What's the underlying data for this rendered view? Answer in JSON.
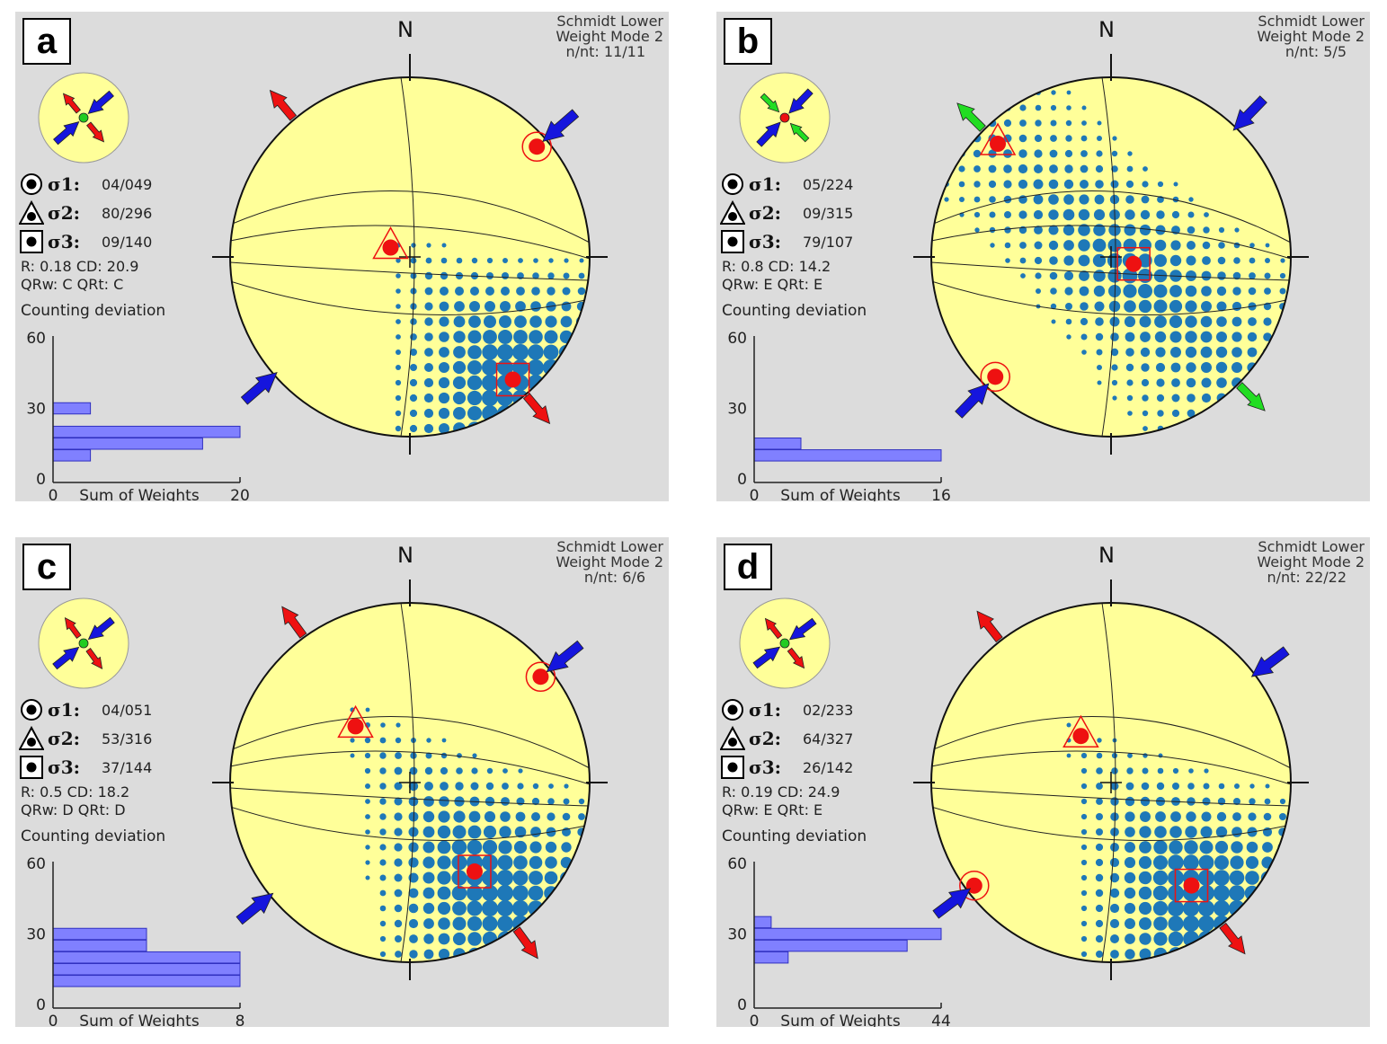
{
  "panels": [
    {
      "id": "a",
      "letter": "a",
      "projection": "Schmidt Lower",
      "weight_mode": "Weight Mode 2",
      "count": "n/nt: 11/11",
      "north": "N",
      "sigma1": {
        "label": "σ1:",
        "value": "04/049",
        "trend": 49,
        "plunge": 4
      },
      "sigma2": {
        "label": "σ2:",
        "value": "80/296",
        "trend": 296,
        "plunge": 80
      },
      "sigma3": {
        "label": "σ3:",
        "value": "09/140",
        "trend": 140,
        "plunge": 9
      },
      "stats_line1": "R: 0.18  CD: 20.9",
      "stats_line2": "QRw: C  QRt: C",
      "regime": {
        "inner": "compressive",
        "outer": "extensional"
      },
      "compression_arrow_trend": 49,
      "extension_arrow_trend": 140,
      "histogram": {
        "title": "Counting deviation",
        "ylabel_ticks": [
          "60",
          "30",
          "0"
        ],
        "x_min_label": "0",
        "x_label": "Sum of Weights",
        "x_max_label": "20",
        "x_max": 20,
        "bars": [
          {
            "deviation": 30,
            "weight": 4
          },
          {
            "deviation": 25,
            "weight": 0
          },
          {
            "deviation": 20,
            "weight": 20
          },
          {
            "deviation": 15,
            "weight": 16
          },
          {
            "deviation": 10,
            "weight": 4
          }
        ]
      }
    },
    {
      "id": "b",
      "letter": "b",
      "projection": "Schmidt Lower",
      "weight_mode": "Weight Mode 2",
      "count": "n/nt: 5/5",
      "north": "N",
      "sigma1": {
        "label": "σ1:",
        "value": "05/224",
        "trend": 224,
        "plunge": 5
      },
      "sigma2": {
        "label": "σ2:",
        "value": "09/315",
        "trend": 315,
        "plunge": 9
      },
      "sigma3": {
        "label": "σ3:",
        "value": "79/107",
        "trend": 107,
        "plunge": 79
      },
      "stats_line1": "R: 0.8  CD: 14.2",
      "stats_line2": "QRw: E  QRt: E",
      "regime": {
        "inner": "compressive",
        "outer": "compressive-minor"
      },
      "compression_arrow_trend": 224,
      "extension_arrow_trend": 315,
      "histogram": {
        "title": "Counting deviation",
        "ylabel_ticks": [
          "60",
          "30",
          "0"
        ],
        "x_min_label": "0",
        "x_label": "Sum of Weights",
        "x_max_label": "16",
        "x_max": 16,
        "bars": [
          {
            "deviation": 15,
            "weight": 4
          },
          {
            "deviation": 10,
            "weight": 16
          }
        ]
      }
    },
    {
      "id": "c",
      "letter": "c",
      "projection": "Schmidt Lower",
      "weight_mode": "Weight Mode 2",
      "count": "n/nt: 6/6",
      "north": "N",
      "sigma1": {
        "label": "σ1:",
        "value": "04/051",
        "trend": 51,
        "plunge": 4
      },
      "sigma2": {
        "label": "σ2:",
        "value": "53/316",
        "trend": 316,
        "plunge": 53
      },
      "sigma3": {
        "label": "σ3:",
        "value": "37/144",
        "trend": 144,
        "plunge": 37
      },
      "stats_line1": "R: 0.5  CD: 18.2",
      "stats_line2": "QRw: D  QRt: D",
      "regime": {
        "inner": "compressive",
        "outer": "extensional"
      },
      "compression_arrow_trend": 51,
      "extension_arrow_trend": 144,
      "histogram": {
        "title": "Counting deviation",
        "ylabel_ticks": [
          "60",
          "30",
          "0"
        ],
        "x_min_label": "0",
        "x_label": "Sum of Weights",
        "x_max_label": "8",
        "x_max": 8,
        "bars": [
          {
            "deviation": 30,
            "weight": 4
          },
          {
            "deviation": 25,
            "weight": 4
          },
          {
            "deviation": 20,
            "weight": 8
          },
          {
            "deviation": 15,
            "weight": 8
          },
          {
            "deviation": 10,
            "weight": 8
          }
        ]
      }
    },
    {
      "id": "d",
      "letter": "d",
      "projection": "Schmidt Lower",
      "weight_mode": "Weight Mode 2",
      "count": "n/nt: 22/22",
      "north": "N",
      "sigma1": {
        "label": "σ1:",
        "value": "02/233",
        "trend": 233,
        "plunge": 2
      },
      "sigma2": {
        "label": "σ2:",
        "value": "64/327",
        "trend": 327,
        "plunge": 64
      },
      "sigma3": {
        "label": "σ3:",
        "value": "26/142",
        "trend": 142,
        "plunge": 26
      },
      "stats_line1": "R: 0.19  CD: 24.9",
      "stats_line2": "QRw: E  QRt: E",
      "regime": {
        "inner": "compressive",
        "outer": "extensional"
      },
      "compression_arrow_trend": 53,
      "extension_arrow_trend": 142,
      "histogram": {
        "title": "Counting deviation",
        "ylabel_ticks": [
          "60",
          "30",
          "0"
        ],
        "x_min_label": "0",
        "x_label": "Sum of Weights",
        "x_max_label": "44",
        "x_max": 44,
        "bars": [
          {
            "deviation": 35,
            "weight": 4
          },
          {
            "deviation": 30,
            "weight": 44
          },
          {
            "deviation": 25,
            "weight": 36
          },
          {
            "deviation": 20,
            "weight": 8
          },
          {
            "deviation": 15,
            "weight": 0
          }
        ]
      }
    }
  ],
  "colors": {
    "panel_background": "#dcdcdc",
    "net_fill": "#ffff99",
    "density_blue": "#1e78b8",
    "sigma_red": "#ee1111",
    "compression_arrow": "#1515dd",
    "extension_arrow": "#ee1111",
    "minor_compression_arrow": "#22dd22",
    "histogram_bar": "#8080ff",
    "histogram_bar_stroke": "#3030c0"
  }
}
